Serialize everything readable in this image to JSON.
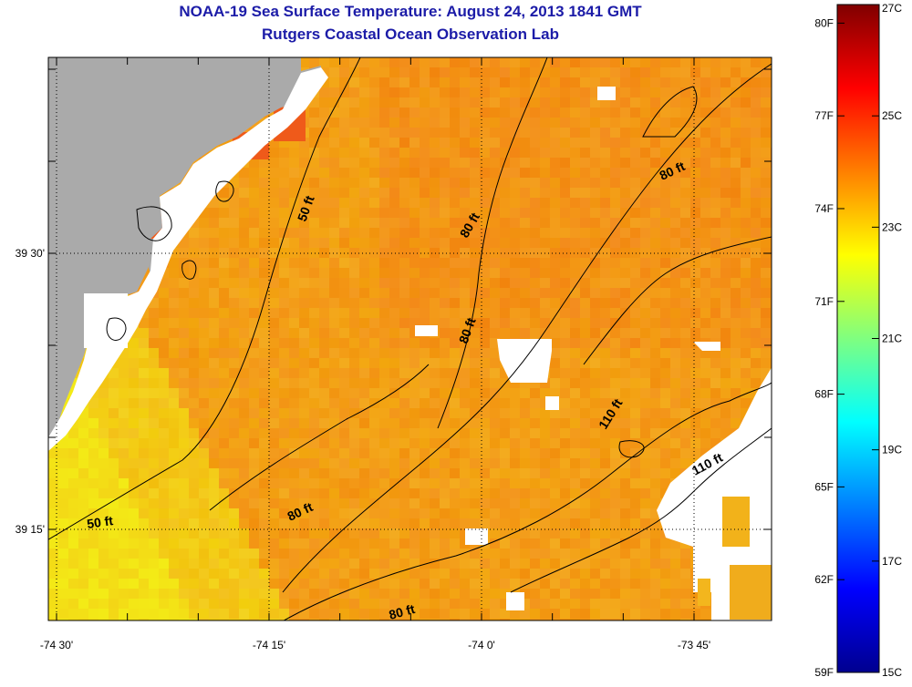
{
  "header": {
    "title": "NOAA-19 Sea Surface Temperature:  August 24, 2013 1841 GMT",
    "subtitle": "Rutgers Coastal Ocean Observation Lab"
  },
  "map": {
    "x_ticks": [
      {
        "lon": -74.5,
        "label": "-74 30'"
      },
      {
        "lon": -74.25,
        "label": "-74 15'"
      },
      {
        "lon": -74.0,
        "label": "-74 0'"
      },
      {
        "lon": -73.75,
        "label": "-73 45'"
      }
    ],
    "y_ticks": [
      {
        "lat": 39.5,
        "label": "39 30'"
      },
      {
        "lat": 39.25,
        "label": "39 15'"
      }
    ],
    "contour_labels": [
      {
        "id": "c50a",
        "text": "50 ft"
      },
      {
        "id": "c50b",
        "text": "50 ft"
      },
      {
        "id": "c80a",
        "text": "80 ft"
      },
      {
        "id": "c80b",
        "text": "80 ft"
      },
      {
        "id": "c80c",
        "text": "80 ft"
      },
      {
        "id": "c80d",
        "text": "80 ft"
      },
      {
        "id": "c80e",
        "text": "80 ft"
      },
      {
        "id": "c110a",
        "text": "110 ft"
      },
      {
        "id": "c110b",
        "text": "110 ft"
      }
    ],
    "colors": {
      "land": "#aaaaaa",
      "no_data": "#ffffff",
      "graticule": "#000000"
    }
  },
  "colorbar": {
    "min_c": 15,
    "max_c": 27,
    "f_labels": [
      "80F",
      "77F",
      "74F",
      "71F",
      "68F",
      "65F",
      "62F",
      "59F"
    ],
    "f_values": [
      80,
      77,
      74,
      71,
      68,
      65,
      62,
      59
    ],
    "c_labels": [
      "27C",
      "25C",
      "23C",
      "21C",
      "19C",
      "17C",
      "15C"
    ],
    "c_values": [
      27,
      25,
      23,
      21,
      19,
      17,
      15
    ]
  }
}
